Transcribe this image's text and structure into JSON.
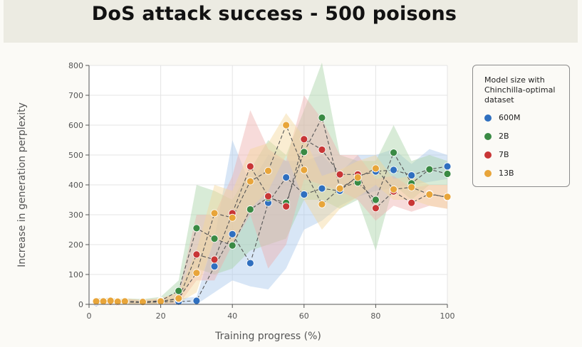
{
  "title": "DoS attack success - 500 poisons",
  "chart_data": {
    "type": "line",
    "title": "DoS attack success - 500 poisons",
    "xlabel": "Training progress (%)",
    "ylabel": "Increase in generation perplexity",
    "xlim": [
      0,
      100
    ],
    "ylim": [
      0,
      800
    ],
    "xticks": [
      0,
      20,
      40,
      60,
      80,
      100
    ],
    "yticks": [
      0,
      100,
      200,
      300,
      400,
      500,
      600,
      700,
      800
    ],
    "grid": true,
    "legend_title": "Model size with Chinchilla-optimal dataset",
    "legend_position": "right",
    "series": [
      {
        "name": "600M",
        "color": "#2f6fbf",
        "band_color": "#a9c8ea",
        "x": [
          2,
          4,
          6,
          8,
          10,
          15,
          20,
          25,
          30,
          35,
          40,
          45,
          50,
          55,
          60,
          65,
          70,
          75,
          80,
          85,
          90,
          95,
          100
        ],
        "y": [
          5,
          8,
          12,
          6,
          8,
          6,
          8,
          9,
          12,
          127,
          235,
          138,
          340,
          425,
          368,
          388,
          380,
          430,
          445,
          450,
          432,
          452,
          462
        ],
        "lower": [
          0,
          0,
          0,
          0,
          0,
          0,
          0,
          0,
          0,
          40,
          80,
          60,
          50,
          120,
          250,
          280,
          330,
          360,
          380,
          390,
          400,
          410,
          420
        ],
        "upper": [
          15,
          18,
          25,
          15,
          18,
          15,
          18,
          20,
          25,
          220,
          550,
          400,
          500,
          480,
          480,
          500,
          440,
          500,
          500,
          520,
          470,
          520,
          500
        ]
      },
      {
        "name": "2B",
        "color": "#3a8a44",
        "band_color": "#a9d3a6",
        "x": [
          2,
          4,
          6,
          8,
          10,
          15,
          20,
          25,
          30,
          35,
          40,
          45,
          50,
          55,
          60,
          65,
          70,
          75,
          80,
          85,
          90,
          95,
          100
        ],
        "y": [
          10,
          12,
          10,
          8,
          10,
          8,
          12,
          45,
          255,
          220,
          197,
          318,
          357,
          340,
          510,
          625,
          390,
          408,
          350,
          508,
          405,
          452,
          437
        ],
        "lower": [
          0,
          0,
          0,
          0,
          0,
          0,
          0,
          10,
          120,
          100,
          120,
          180,
          200,
          220,
          350,
          350,
          320,
          350,
          180,
          400,
          350,
          400,
          400
        ],
        "upper": [
          20,
          22,
          20,
          18,
          20,
          18,
          25,
          80,
          400,
          380,
          350,
          450,
          550,
          500,
          650,
          820,
          500,
          480,
          480,
          600,
          480,
          500,
          480
        ]
      },
      {
        "name": "7B",
        "color": "#c83636",
        "band_color": "#eeb0ad",
        "x": [
          2,
          4,
          6,
          8,
          10,
          15,
          20,
          25,
          30,
          35,
          40,
          45,
          50,
          55,
          60,
          65,
          70,
          75,
          80,
          85,
          90,
          95,
          100
        ],
        "y": [
          8,
          10,
          9,
          7,
          9,
          7,
          10,
          18,
          167,
          150,
          305,
          462,
          362,
          328,
          553,
          518,
          435,
          435,
          322,
          378,
          340,
          370,
          358
        ],
        "lower": [
          0,
          0,
          0,
          0,
          0,
          0,
          0,
          0,
          80,
          80,
          200,
          300,
          120,
          200,
          420,
          400,
          380,
          350,
          280,
          330,
          310,
          330,
          320
        ],
        "upper": [
          18,
          20,
          18,
          15,
          18,
          15,
          20,
          40,
          300,
          300,
          430,
          650,
          520,
          480,
          700,
          620,
          500,
          500,
          420,
          430,
          390,
          400,
          400
        ]
      },
      {
        "name": "13B",
        "color": "#e8a53a",
        "band_color": "#f5d79c",
        "x": [
          2,
          4,
          6,
          8,
          10,
          15,
          20,
          25,
          30,
          35,
          40,
          45,
          50,
          55,
          60,
          65,
          70,
          75,
          80,
          85,
          90,
          95,
          100
        ],
        "y": [
          10,
          10,
          12,
          9,
          10,
          8,
          10,
          20,
          105,
          305,
          290,
          412,
          447,
          600,
          450,
          335,
          388,
          425,
          455,
          385,
          392,
          368,
          360
        ],
        "lower": [
          0,
          0,
          0,
          0,
          0,
          0,
          0,
          5,
          40,
          220,
          200,
          320,
          380,
          500,
          350,
          250,
          320,
          360,
          400,
          350,
          350,
          330,
          320
        ],
        "upper": [
          20,
          20,
          22,
          18,
          20,
          15,
          20,
          40,
          180,
          400,
          380,
          520,
          540,
          640,
          560,
          430,
          450,
          480,
          500,
          420,
          430,
          400,
          400
        ]
      }
    ]
  }
}
